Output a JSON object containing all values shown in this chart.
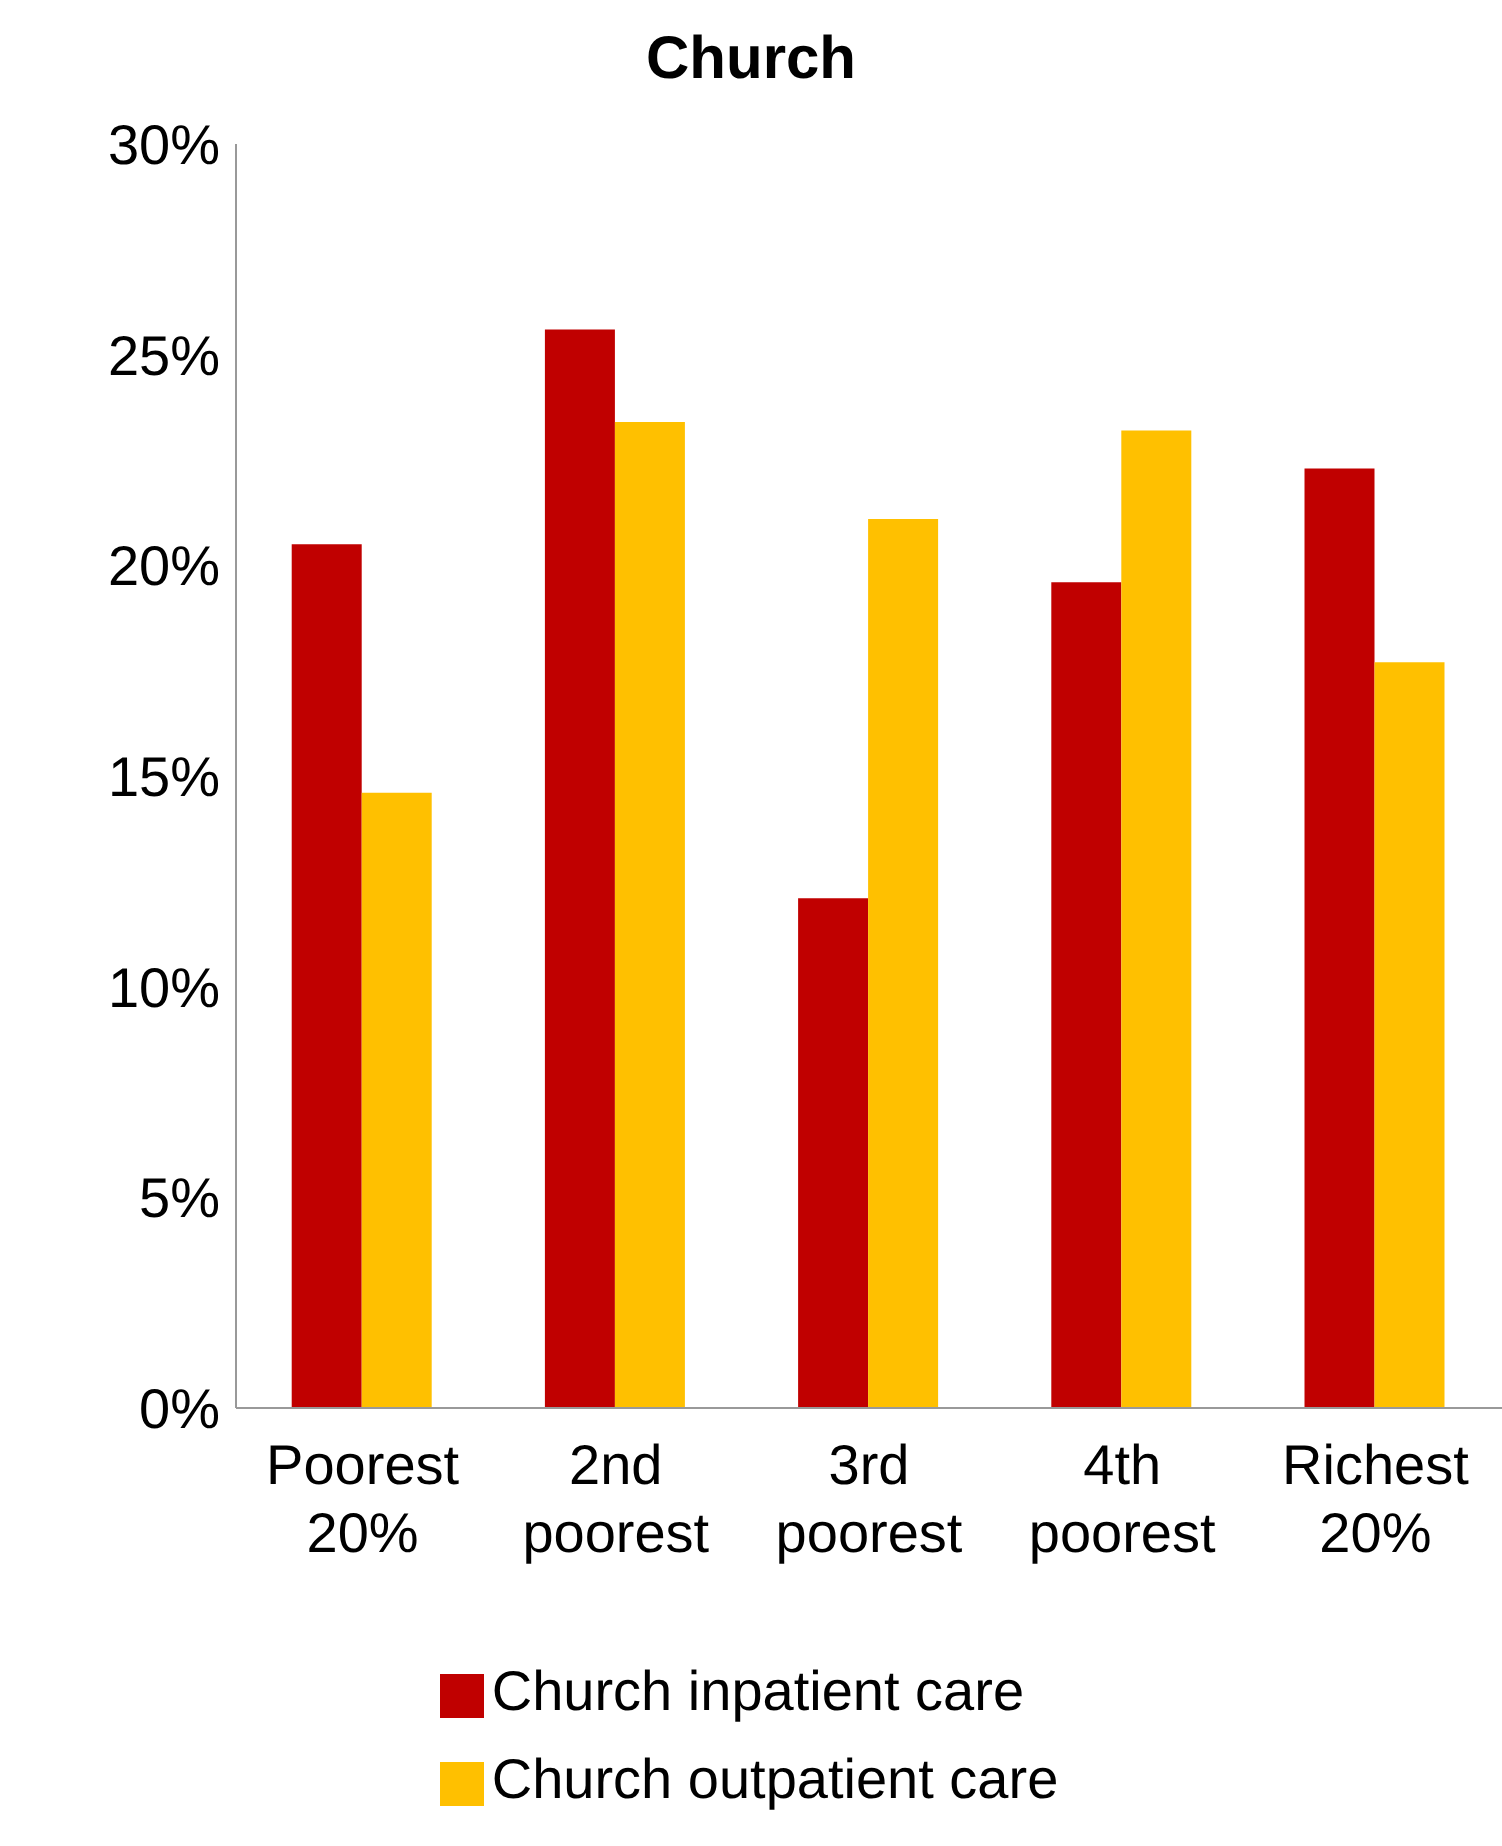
{
  "chart_data": {
    "type": "bar",
    "title": "Church",
    "categories": [
      "Poorest 20%",
      "2nd poorest",
      "3rd poorest",
      "4th poorest",
      "Richest 20%"
    ],
    "series": [
      {
        "name": "Church inpatient care",
        "color": "#c00000",
        "values": [
          20.5,
          25.6,
          12.1,
          19.6,
          22.3
        ]
      },
      {
        "name": "Church outpatient care",
        "color": "#ffc000",
        "values": [
          14.6,
          23.4,
          21.1,
          23.2,
          17.7
        ]
      }
    ],
    "ylim": [
      0,
      30
    ],
    "yticks": [
      {
        "value": 0,
        "label": "0%"
      },
      {
        "value": 5,
        "label": "5%"
      },
      {
        "value": 10,
        "label": "10%"
      },
      {
        "value": 15,
        "label": "15%"
      },
      {
        "value": 20,
        "label": "20%"
      },
      {
        "value": 25,
        "label": "25%"
      },
      {
        "value": 30,
        "label": "30%"
      }
    ],
    "grid": false,
    "legend": "bottom"
  }
}
